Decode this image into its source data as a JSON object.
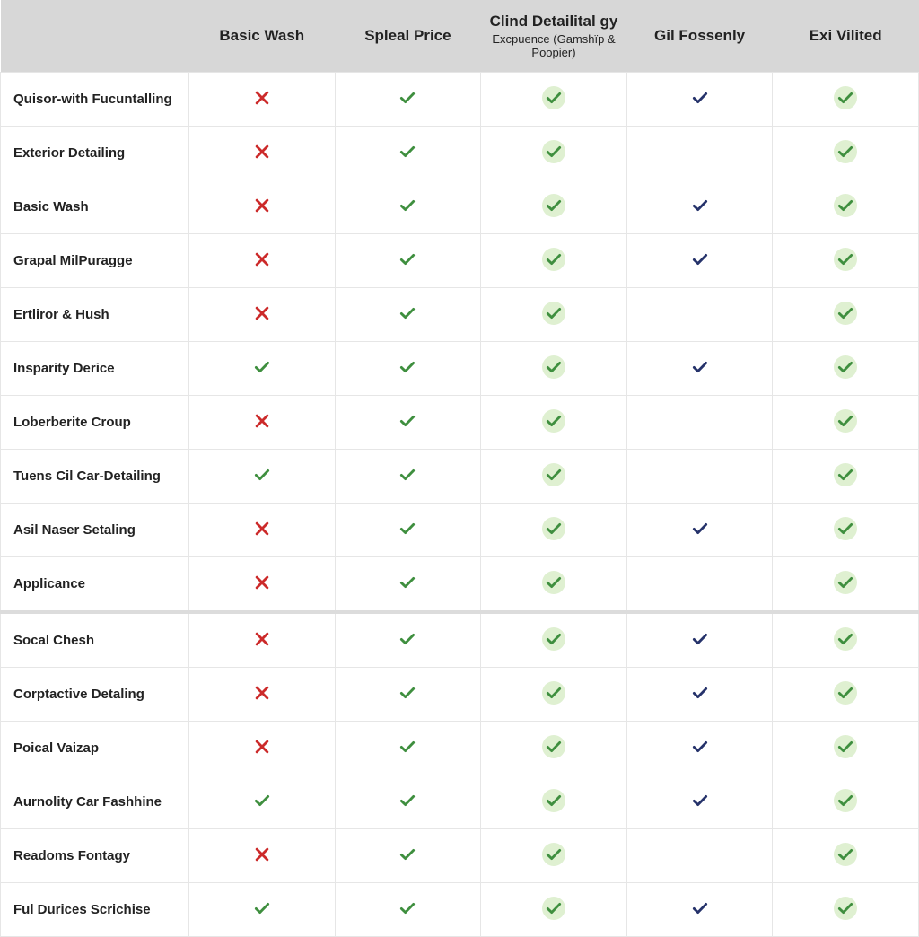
{
  "colors": {
    "header_bg": "#d7d7d7",
    "border": "#e6e6e6",
    "section_border": "#dcdcdc",
    "cross_red": "#cc2a2a",
    "check_green": "#3f8f3f",
    "check_navy": "#26336b",
    "halo_green": "#dff0d1"
  },
  "table": {
    "columns": [
      {
        "key": "feature",
        "label": "",
        "sub": ""
      },
      {
        "key": "c1",
        "label": "Basic Wash",
        "sub": ""
      },
      {
        "key": "c2",
        "label": "Spleal Price",
        "sub": ""
      },
      {
        "key": "c3",
        "label": "Clind Detailital gy",
        "sub": "Excpuence (Gamshïp & Poopier)"
      },
      {
        "key": "c4",
        "label": "Gil Fossenly",
        "sub": ""
      },
      {
        "key": "c5",
        "label": "Exi Vilited",
        "sub": ""
      }
    ],
    "rows": [
      {
        "label": "Quisor-with Fucuntalling",
        "cells": [
          "cross",
          "check_g",
          "check_halo",
          "check_navy",
          "check_halo"
        ],
        "section_start": false
      },
      {
        "label": "Exterior Detailing",
        "cells": [
          "cross",
          "check_g",
          "check_halo",
          "",
          "check_halo"
        ],
        "section_start": false
      },
      {
        "label": "Basic Wash",
        "cells": [
          "cross",
          "check_g",
          "check_halo",
          "check_navy",
          "check_halo"
        ],
        "section_start": false
      },
      {
        "label": "Grapal MilPuragge",
        "cells": [
          "cross",
          "check_g",
          "check_halo",
          "check_navy",
          "check_halo"
        ],
        "section_start": false
      },
      {
        "label": "Ertliror & Hush",
        "cells": [
          "cross",
          "check_g",
          "check_halo",
          "",
          "check_halo"
        ],
        "section_start": false
      },
      {
        "label": "Insparity Derice",
        "cells": [
          "check_g",
          "check_g",
          "check_halo",
          "check_navy",
          "check_halo"
        ],
        "section_start": false
      },
      {
        "label": "Loberberite Croup",
        "cells": [
          "cross",
          "check_g",
          "check_halo",
          "",
          "check_halo"
        ],
        "section_start": false
      },
      {
        "label": "Tuens Cil Car-Detailing",
        "cells": [
          "check_g",
          "check_g",
          "check_halo",
          "",
          "check_halo"
        ],
        "section_start": false
      },
      {
        "label": "Asil Naser Setaling",
        "cells": [
          "cross",
          "check_g",
          "check_halo",
          "check_navy",
          "check_halo"
        ],
        "section_start": false
      },
      {
        "label": "Applicance",
        "cells": [
          "cross",
          "check_g",
          "check_halo",
          "",
          "check_halo"
        ],
        "section_start": false
      },
      {
        "label": "Socal Chesh",
        "cells": [
          "cross",
          "check_g",
          "check_halo",
          "check_navy",
          "check_halo"
        ],
        "section_start": true
      },
      {
        "label": "Corptactive Detaling",
        "cells": [
          "cross",
          "check_g",
          "check_halo",
          "check_navy",
          "check_halo"
        ],
        "section_start": false
      },
      {
        "label": "Poical Vaizap",
        "cells": [
          "cross",
          "check_g",
          "check_halo",
          "check_navy",
          "check_halo"
        ],
        "section_start": false
      },
      {
        "label": "Aurnolity Car Fashhine",
        "cells": [
          "check_g",
          "check_g",
          "check_halo",
          "check_navy",
          "check_halo"
        ],
        "section_start": false
      },
      {
        "label": "Readoms Fontagy",
        "cells": [
          "cross",
          "check_g",
          "check_halo",
          "",
          "check_halo"
        ],
        "section_start": false
      },
      {
        "label": "Ful Durices Scrichise",
        "cells": [
          "check_g",
          "check_g",
          "check_halo",
          "check_navy",
          "check_halo"
        ],
        "section_start": false
      }
    ],
    "mark_styles": {
      "cross": {
        "shape": "cross",
        "color": "#cc2a2a",
        "halo": null
      },
      "check_g": {
        "shape": "check",
        "color": "#3f8f3f",
        "halo": null
      },
      "check_halo": {
        "shape": "check",
        "color": "#3f8f3f",
        "halo": "#dff0d1"
      },
      "check_navy": {
        "shape": "check",
        "color": "#26336b",
        "halo": null
      }
    }
  }
}
